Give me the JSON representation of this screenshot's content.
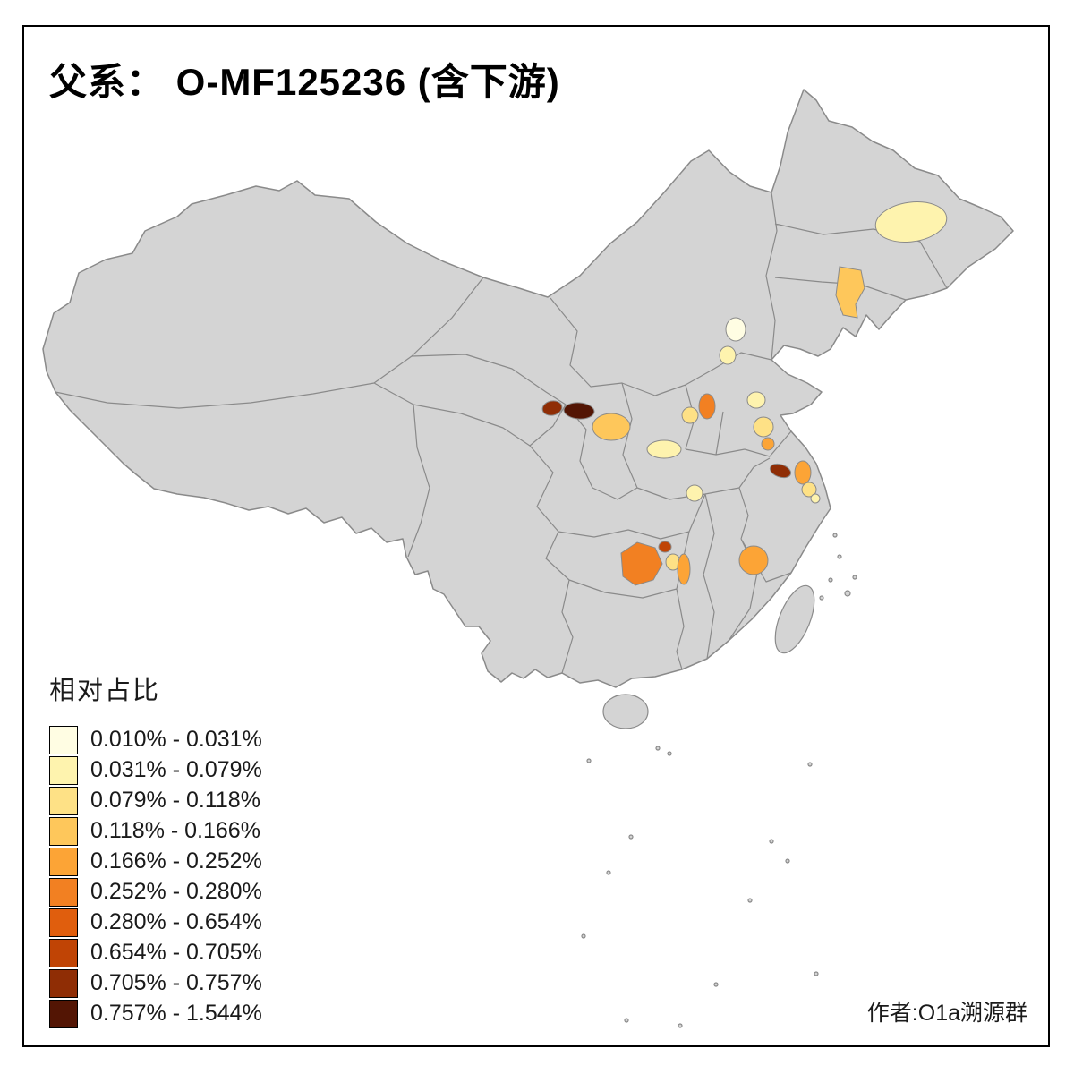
{
  "title": "父系： O-MF125236 (含下游)",
  "legend": {
    "title": "相对占比",
    "bins": [
      {
        "label": "0.010% - 0.031%",
        "color": "#FFFDE3"
      },
      {
        "label": "0.031% - 0.079%",
        "color": "#FEF3AE"
      },
      {
        "label": "0.079% - 0.118%",
        "color": "#FEE186"
      },
      {
        "label": "0.118% - 0.166%",
        "color": "#FEC75B"
      },
      {
        "label": "0.166% - 0.252%",
        "color": "#FCA436"
      },
      {
        "label": "0.252% - 0.280%",
        "color": "#F28022"
      },
      {
        "label": "0.280% - 0.654%",
        "color": "#E05E0D"
      },
      {
        "label": "0.654% - 0.705%",
        "color": "#C04405"
      },
      {
        "label": "0.705% - 0.757%",
        "color": "#8F2D05"
      },
      {
        "label": "0.757% - 1.544%",
        "color": "#531504"
      }
    ]
  },
  "credit": "作者:O1a溯源群",
  "map": {
    "land_fill": "#D4D4D4",
    "border_color": "#8A8A8A",
    "frame_color": "#000000",
    "background": "#FFFFFF",
    "patches": [
      {
        "id": "ne-heilongjiang",
        "bin": 1
      },
      {
        "id": "liaoning",
        "bin": 3
      },
      {
        "id": "beijing-n",
        "bin": 0
      },
      {
        "id": "beijing-s",
        "bin": 1
      },
      {
        "id": "gansu-west",
        "bin": 8
      },
      {
        "id": "gansu-east",
        "bin": 9
      },
      {
        "id": "shaanxi-center",
        "bin": 3
      },
      {
        "id": "shanxi-east",
        "bin": 5
      },
      {
        "id": "shanxi-south",
        "bin": 2
      },
      {
        "id": "shandong-north",
        "bin": 1
      },
      {
        "id": "shandong-center",
        "bin": 2
      },
      {
        "id": "shandong-south",
        "bin": 4
      },
      {
        "id": "henan",
        "bin": 1
      },
      {
        "id": "jiangsu-north",
        "bin": 8
      },
      {
        "id": "jiangsu-center",
        "bin": 4
      },
      {
        "id": "jiangsu-south",
        "bin": 2
      },
      {
        "id": "shanghai-area",
        "bin": 1
      },
      {
        "id": "hubei",
        "bin": 1
      },
      {
        "id": "guizhou-main",
        "bin": 5
      },
      {
        "id": "guizhou-ne",
        "bin": 7
      },
      {
        "id": "guizhou-east",
        "bin": 2
      },
      {
        "id": "hunan-west",
        "bin": 4
      },
      {
        "id": "jiangxi-east",
        "bin": 4
      }
    ]
  }
}
